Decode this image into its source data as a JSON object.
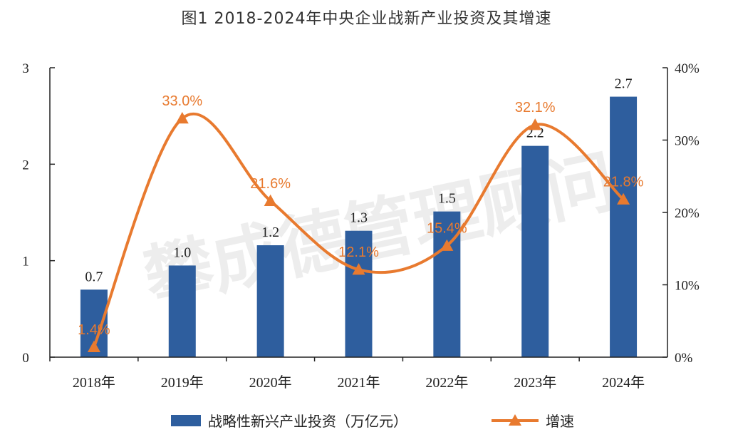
{
  "title": "图1 2018-2024年中央企业战新产业投资及其增速",
  "watermark": "攀成德管理顾问",
  "colors": {
    "bar": "#2E5E9E",
    "line": "#E87A2F",
    "axis": "#222222"
  },
  "chart_data": {
    "type": "bar",
    "categories": [
      "2018年",
      "2019年",
      "2020年",
      "2021年",
      "2022年",
      "2023年",
      "2024年"
    ],
    "series": [
      {
        "name": "战略性新兴产业投资（万亿元）",
        "type": "bar",
        "axis": "left",
        "values": [
          0.7,
          0.95,
          1.16,
          1.31,
          1.51,
          2.19,
          2.7
        ],
        "labels": [
          "0.7",
          "1.0",
          "1.2",
          "1.3",
          "1.5",
          "2.2",
          "2.7"
        ]
      },
      {
        "name": "增速",
        "type": "line",
        "axis": "right",
        "values": [
          1.4,
          33.0,
          21.6,
          12.1,
          15.4,
          32.1,
          21.8
        ],
        "labels": [
          "1.4%",
          "33.0%",
          "21.6%",
          "12.1%",
          "15.4%",
          "32.1%",
          "21.8%"
        ]
      }
    ],
    "y_left": {
      "ylim": [
        0,
        3
      ],
      "ticks": [
        0,
        1,
        2,
        3
      ],
      "tick_labels": [
        "0",
        "1",
        "2",
        "3"
      ]
    },
    "y_right": {
      "ylim": [
        0,
        40
      ],
      "ticks": [
        0,
        10,
        20,
        30,
        40
      ],
      "tick_labels": [
        "0%",
        "10%",
        "20%",
        "30%",
        "40%"
      ]
    },
    "grid": false,
    "legend_position": "bottom-center"
  }
}
